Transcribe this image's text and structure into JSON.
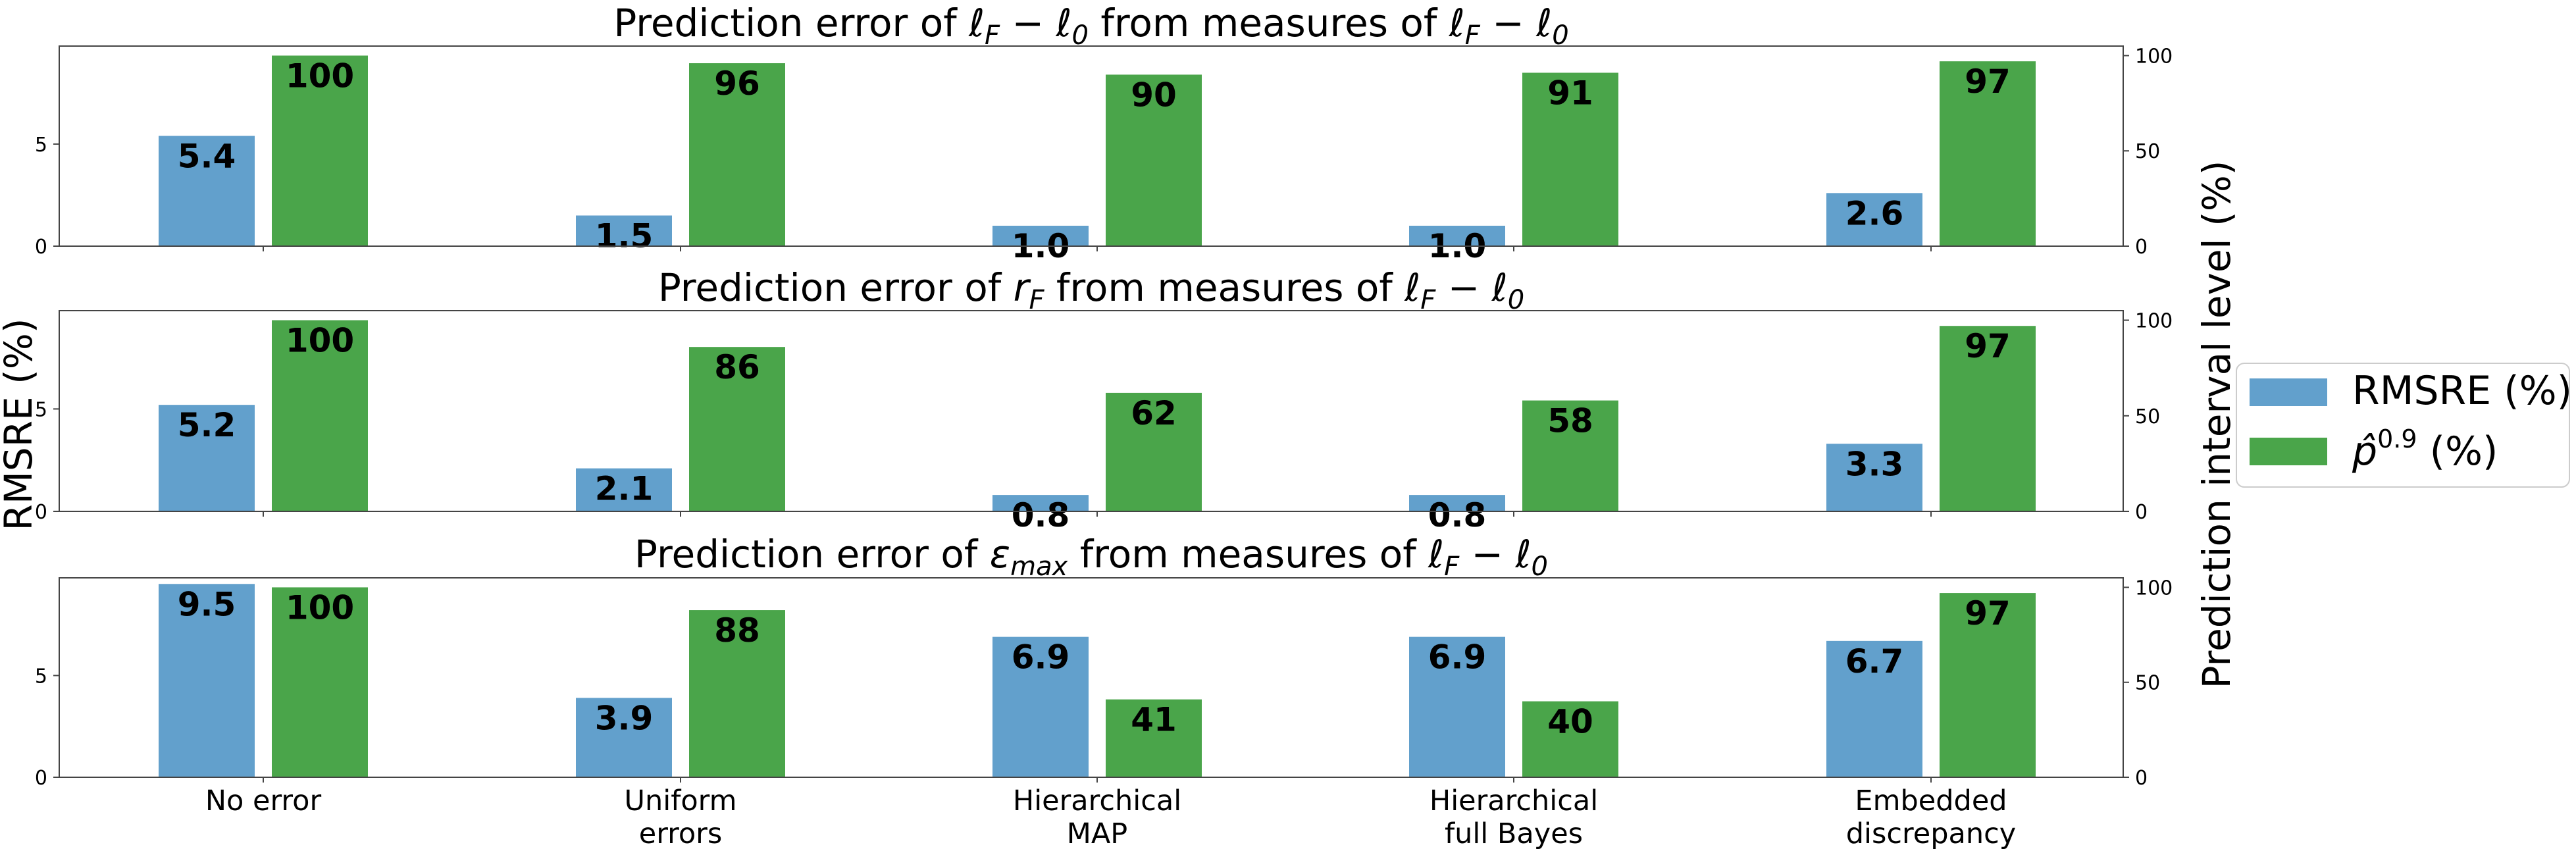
{
  "chart_data": {
    "type": "bar",
    "categories": [
      [
        "No error"
      ],
      [
        "Uniform",
        "errors"
      ],
      [
        "Hierarchical",
        "MAP"
      ],
      [
        "Hierarchical",
        "full Bayes"
      ],
      [
        "Embedded",
        "discrepancy"
      ]
    ],
    "left_axis_label": "RMSRE (%)",
    "right_axis_label": "Prediction interval level (%)",
    "left_ylim": [
      0,
      9.8
    ],
    "left_ticks": [
      0,
      5
    ],
    "right_ylim": [
      0,
      105
    ],
    "right_ticks": [
      0,
      50,
      100
    ],
    "legend": {
      "placement": "right",
      "entries": [
        {
          "label": "RMSRE (%)",
          "color": "#62a0cc"
        },
        {
          "label_base": "p̂",
          "label_sup": "0.9",
          "label_suffix": " (%)",
          "color": "#4aa54a"
        }
      ]
    },
    "panels": [
      {
        "title_parts": [
          "Prediction error of ",
          "ℓ",
          "F",
          " − ",
          "ℓ",
          "0",
          " from measures of ",
          "ℓ",
          "F",
          " − ",
          "ℓ",
          "0"
        ],
        "series": [
          {
            "name": "RMSRE (%)",
            "axis": "left",
            "values": [
              5.4,
              1.5,
              1.0,
              1.0,
              2.6
            ],
            "labels": [
              "5.4",
              "1.5",
              "1.0",
              "1.0",
              "2.6"
            ]
          },
          {
            "name": "p̂0.9 (%)",
            "axis": "right",
            "values": [
              100,
              96,
              90,
              91,
              97
            ],
            "labels": [
              "100",
              "96",
              "90",
              "91",
              "97"
            ]
          }
        ]
      },
      {
        "title_parts": [
          "Prediction error of ",
          "r",
          "F",
          " from measures of ",
          "ℓ",
          "F",
          " − ",
          "ℓ",
          "0"
        ],
        "series": [
          {
            "name": "RMSRE (%)",
            "axis": "left",
            "values": [
              5.2,
              2.1,
              0.8,
              0.8,
              3.3
            ],
            "labels": [
              "5.2",
              "2.1",
              "0.8",
              "0.8",
              "3.3"
            ]
          },
          {
            "name": "p̂0.9 (%)",
            "axis": "right",
            "values": [
              100,
              86,
              62,
              58,
              97
            ],
            "labels": [
              "100",
              "86",
              "62",
              "58",
              "97"
            ]
          }
        ]
      },
      {
        "title_parts": [
          "Prediction error of ",
          "ε",
          "max",
          " from measures of ",
          "ℓ",
          "F",
          " − ",
          "ℓ",
          "0"
        ],
        "series": [
          {
            "name": "RMSRE (%)",
            "axis": "left",
            "values": [
              9.5,
              3.9,
              6.9,
              6.9,
              6.7
            ],
            "labels": [
              "9.5",
              "3.9",
              "6.9",
              "6.9",
              "6.7"
            ]
          },
          {
            "name": "p̂0.9 (%)",
            "axis": "right",
            "values": [
              100,
              88,
              41,
              40,
              97
            ],
            "labels": [
              "100",
              "88",
              "41",
              "40",
              "97"
            ]
          }
        ]
      }
    ]
  }
}
